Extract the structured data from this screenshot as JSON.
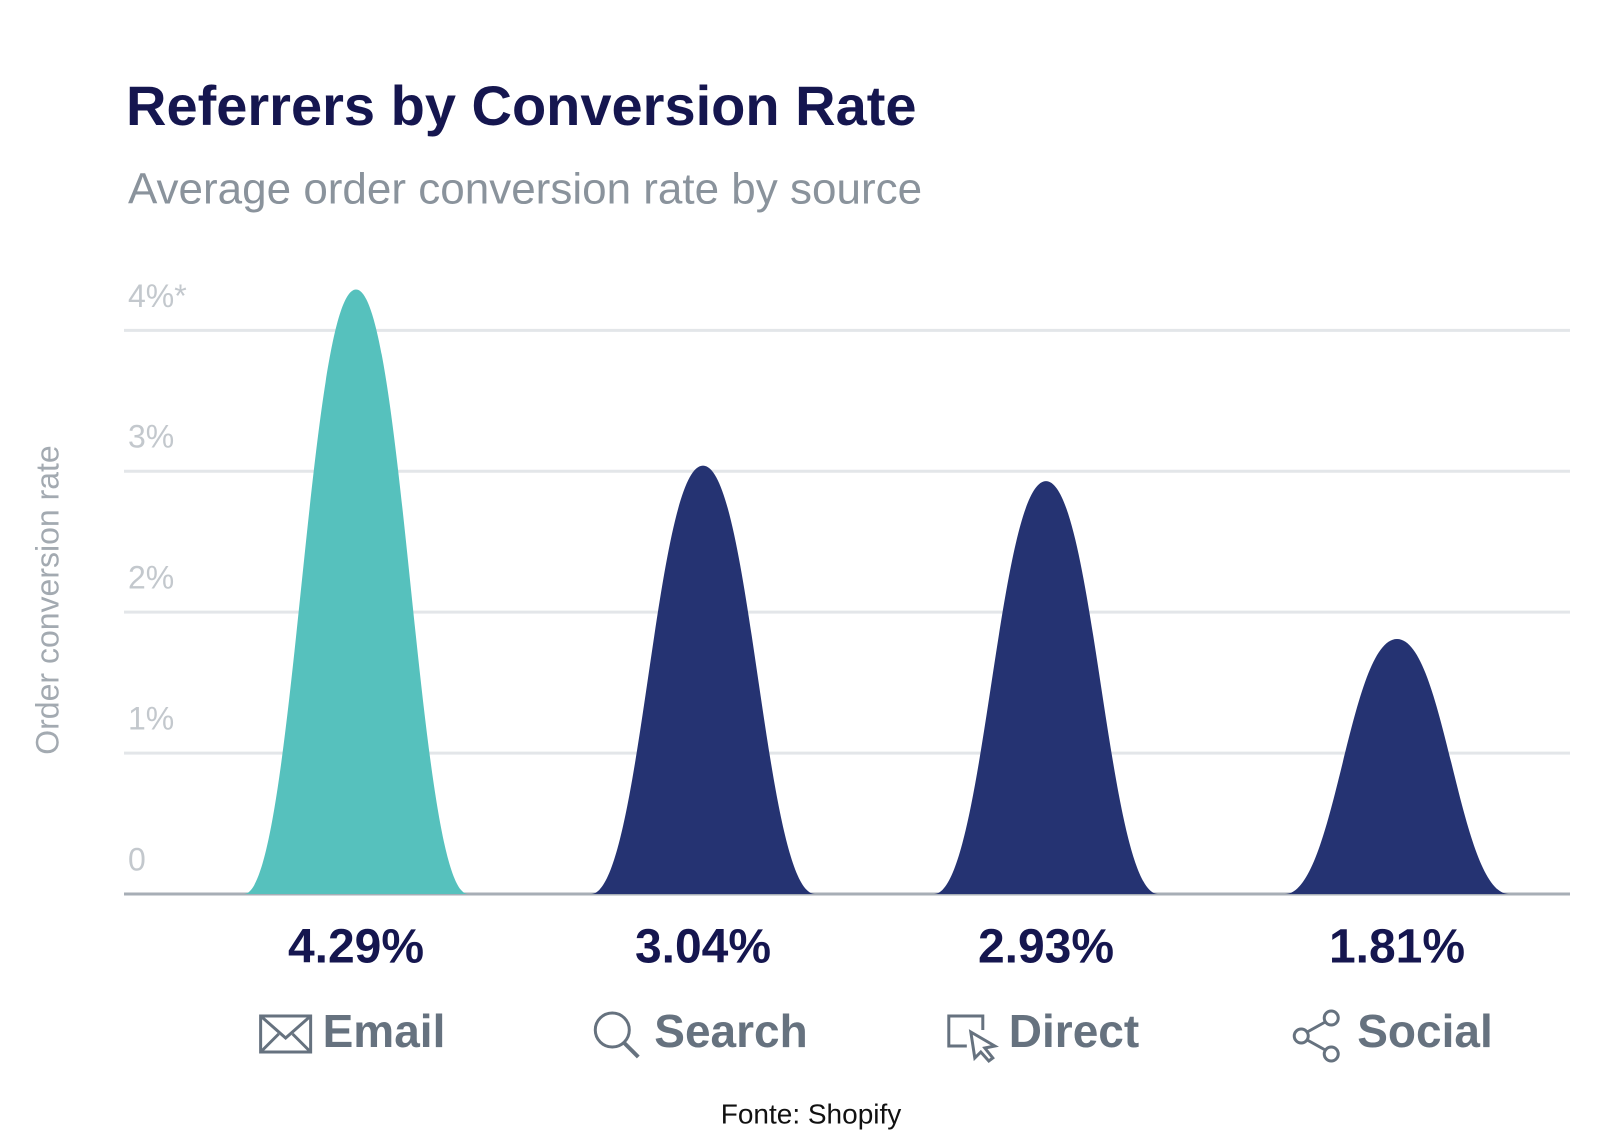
{
  "chart_data": {
    "type": "peak",
    "title": "Referrers by Conversion Rate",
    "subtitle": "Average order conversion rate by source",
    "y_label": "Order conversion rate",
    "categories": [
      "Email",
      "Search",
      "Direct",
      "Social"
    ],
    "values": [
      4.29,
      3.04,
      2.93,
      1.81
    ],
    "value_labels": [
      "4.29%",
      "3.04%",
      "2.93%",
      "1.81%"
    ],
    "colors": [
      "#56c1bd",
      "#253372",
      "#253372",
      "#253372"
    ],
    "ylim": [
      0,
      4.4
    ],
    "yticks": [
      0,
      {
        "value": 1,
        "label": "1%"
      },
      {
        "value": 2,
        "label": "2%"
      },
      {
        "value": 3,
        "label": "3%"
      },
      {
        "value": 4,
        "label": "4%*"
      }
    ],
    "grid": true,
    "source": "Fonte: Shopify"
  }
}
